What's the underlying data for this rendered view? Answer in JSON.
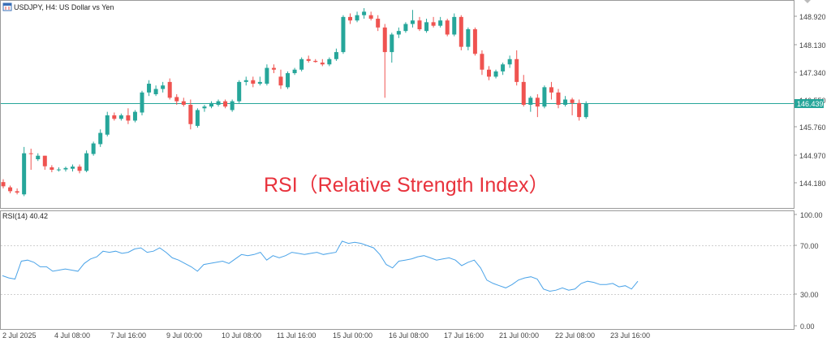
{
  "chart_data": [
    {
      "type": "candlestick",
      "title": "USDJPY, H4:  US Dollar vs Yen",
      "overlay_text": "RSI（Relative Strength Index）",
      "y_ticks": [
        "148.920",
        "148.130",
        "147.340",
        "146.550",
        "145.760",
        "144.970",
        "144.180"
      ],
      "current_price": "146.439",
      "colors": {
        "up": "#26a69a",
        "down": "#ef5350",
        "price_line": "#26a69a",
        "tag_bg": "#26a69a"
      },
      "candles": [
        {
          "o": 144.2,
          "h": 144.28,
          "l": 144.02,
          "c": 144.08
        },
        {
          "o": 144.05,
          "h": 144.1,
          "l": 143.88,
          "c": 143.94
        },
        {
          "o": 143.94,
          "h": 144.02,
          "l": 143.85,
          "c": 143.9
        },
        {
          "o": 143.85,
          "h": 145.2,
          "l": 143.8,
          "c": 145.02
        },
        {
          "o": 145.02,
          "h": 145.15,
          "l": 144.55,
          "c": 145.0
        },
        {
          "o": 144.85,
          "h": 145.02,
          "l": 144.8,
          "c": 144.95
        },
        {
          "o": 144.95,
          "h": 144.95,
          "l": 144.55,
          "c": 144.65
        },
        {
          "o": 144.62,
          "h": 144.68,
          "l": 144.48,
          "c": 144.55
        },
        {
          "o": 144.55,
          "h": 144.62,
          "l": 144.5,
          "c": 144.56
        },
        {
          "o": 144.56,
          "h": 144.64,
          "l": 144.5,
          "c": 144.6
        },
        {
          "o": 144.58,
          "h": 144.7,
          "l": 144.5,
          "c": 144.64
        },
        {
          "o": 144.64,
          "h": 144.7,
          "l": 144.45,
          "c": 144.52
        },
        {
          "o": 144.52,
          "h": 145.1,
          "l": 144.48,
          "c": 145.02
        },
        {
          "o": 145.0,
          "h": 145.35,
          "l": 144.95,
          "c": 145.3
        },
        {
          "o": 145.28,
          "h": 145.7,
          "l": 145.2,
          "c": 145.6
        },
        {
          "o": 145.55,
          "h": 146.2,
          "l": 145.5,
          "c": 146.1
        },
        {
          "o": 146.1,
          "h": 146.18,
          "l": 145.95,
          "c": 146.0
        },
        {
          "o": 146.0,
          "h": 146.15,
          "l": 145.95,
          "c": 146.1
        },
        {
          "o": 146.1,
          "h": 146.3,
          "l": 145.85,
          "c": 145.95
        },
        {
          "o": 145.95,
          "h": 146.25,
          "l": 145.9,
          "c": 146.2
        },
        {
          "o": 146.18,
          "h": 146.8,
          "l": 146.1,
          "c": 146.75
        },
        {
          "o": 146.75,
          "h": 147.1,
          "l": 146.65,
          "c": 147.0
        },
        {
          "o": 146.7,
          "h": 146.95,
          "l": 146.65,
          "c": 146.85
        },
        {
          "o": 146.85,
          "h": 147.05,
          "l": 146.75,
          "c": 146.95
        },
        {
          "o": 147.05,
          "h": 147.15,
          "l": 146.55,
          "c": 146.6
        },
        {
          "o": 146.62,
          "h": 146.7,
          "l": 146.4,
          "c": 146.5
        },
        {
          "o": 146.5,
          "h": 146.6,
          "l": 146.35,
          "c": 146.4
        },
        {
          "o": 146.4,
          "h": 146.55,
          "l": 145.7,
          "c": 145.85
        },
        {
          "o": 145.8,
          "h": 146.3,
          "l": 145.75,
          "c": 146.25
        },
        {
          "o": 146.3,
          "h": 146.4,
          "l": 146.2,
          "c": 146.35
        },
        {
          "o": 146.35,
          "h": 146.5,
          "l": 146.3,
          "c": 146.45
        },
        {
          "o": 146.4,
          "h": 146.55,
          "l": 146.35,
          "c": 146.5
        },
        {
          "o": 146.5,
          "h": 146.55,
          "l": 146.3,
          "c": 146.35
        },
        {
          "o": 146.25,
          "h": 146.55,
          "l": 146.2,
          "c": 146.5
        },
        {
          "o": 146.5,
          "h": 147.1,
          "l": 146.45,
          "c": 147.05
        },
        {
          "o": 147.05,
          "h": 147.2,
          "l": 146.95,
          "c": 147.1
        },
        {
          "o": 147.1,
          "h": 147.2,
          "l": 146.9,
          "c": 147.0
        },
        {
          "o": 147.0,
          "h": 147.2,
          "l": 146.95,
          "c": 147.05
        },
        {
          "o": 147.0,
          "h": 147.55,
          "l": 146.95,
          "c": 147.45
        },
        {
          "o": 147.45,
          "h": 147.55,
          "l": 147.3,
          "c": 147.4
        },
        {
          "o": 147.2,
          "h": 147.4,
          "l": 146.85,
          "c": 146.95
        },
        {
          "o": 146.9,
          "h": 147.35,
          "l": 146.85,
          "c": 147.3
        },
        {
          "o": 147.3,
          "h": 147.45,
          "l": 147.25,
          "c": 147.4
        },
        {
          "o": 147.4,
          "h": 147.75,
          "l": 147.35,
          "c": 147.7
        },
        {
          "o": 147.7,
          "h": 147.8,
          "l": 147.6,
          "c": 147.65
        },
        {
          "o": 147.65,
          "h": 147.7,
          "l": 147.6,
          "c": 147.62
        },
        {
          "o": 147.6,
          "h": 147.7,
          "l": 147.5,
          "c": 147.55
        },
        {
          "o": 147.55,
          "h": 147.75,
          "l": 147.5,
          "c": 147.7
        },
        {
          "o": 147.7,
          "h": 148.0,
          "l": 147.65,
          "c": 147.9
        },
        {
          "o": 147.9,
          "h": 148.95,
          "l": 147.85,
          "c": 148.9
        },
        {
          "o": 148.9,
          "h": 149.0,
          "l": 148.7,
          "c": 148.8
        },
        {
          "o": 148.8,
          "h": 149.05,
          "l": 148.75,
          "c": 148.95
        },
        {
          "o": 148.95,
          "h": 149.15,
          "l": 148.85,
          "c": 149.05
        },
        {
          "o": 148.95,
          "h": 149.05,
          "l": 148.8,
          "c": 148.85
        },
        {
          "o": 148.85,
          "h": 148.95,
          "l": 148.5,
          "c": 148.6
        },
        {
          "o": 148.6,
          "h": 148.7,
          "l": 146.6,
          "c": 147.9
        },
        {
          "o": 147.9,
          "h": 148.45,
          "l": 147.6,
          "c": 148.4
        },
        {
          "o": 148.4,
          "h": 148.6,
          "l": 148.3,
          "c": 148.5
        },
        {
          "o": 148.5,
          "h": 148.75,
          "l": 148.45,
          "c": 148.7
        },
        {
          "o": 148.7,
          "h": 149.1,
          "l": 148.6,
          "c": 148.8
        },
        {
          "o": 148.8,
          "h": 148.9,
          "l": 148.5,
          "c": 148.55
        },
        {
          "o": 148.5,
          "h": 148.85,
          "l": 148.45,
          "c": 148.75
        },
        {
          "o": 148.75,
          "h": 148.9,
          "l": 148.6,
          "c": 148.65
        },
        {
          "o": 148.65,
          "h": 148.9,
          "l": 148.6,
          "c": 148.8
        },
        {
          "o": 148.8,
          "h": 148.85,
          "l": 148.35,
          "c": 148.4
        },
        {
          "o": 148.4,
          "h": 149.0,
          "l": 148.35,
          "c": 148.9
        },
        {
          "o": 148.9,
          "h": 148.95,
          "l": 147.95,
          "c": 148.05
        },
        {
          "o": 148.05,
          "h": 148.6,
          "l": 147.95,
          "c": 148.55
        },
        {
          "o": 148.55,
          "h": 148.6,
          "l": 147.8,
          "c": 147.85
        },
        {
          "o": 147.85,
          "h": 147.95,
          "l": 147.25,
          "c": 147.4
        },
        {
          "o": 147.4,
          "h": 147.5,
          "l": 147.1,
          "c": 147.2
        },
        {
          "o": 147.2,
          "h": 147.4,
          "l": 147.15,
          "c": 147.35
        },
        {
          "o": 147.35,
          "h": 147.6,
          "l": 147.25,
          "c": 147.55
        },
        {
          "o": 147.55,
          "h": 147.8,
          "l": 147.45,
          "c": 147.7
        },
        {
          "o": 147.7,
          "h": 147.95,
          "l": 146.95,
          "c": 147.05
        },
        {
          "o": 147.05,
          "h": 147.25,
          "l": 146.35,
          "c": 146.4
        },
        {
          "o": 146.4,
          "h": 146.65,
          "l": 146.2,
          "c": 146.6
        },
        {
          "o": 146.6,
          "h": 146.7,
          "l": 146.05,
          "c": 146.35
        },
        {
          "o": 146.35,
          "h": 146.95,
          "l": 146.3,
          "c": 146.9
        },
        {
          "o": 146.9,
          "h": 147.05,
          "l": 146.55,
          "c": 146.75
        },
        {
          "o": 146.75,
          "h": 146.85,
          "l": 146.3,
          "c": 146.4
        },
        {
          "o": 146.4,
          "h": 146.65,
          "l": 146.35,
          "c": 146.55
        },
        {
          "o": 146.55,
          "h": 146.6,
          "l": 146.1,
          "c": 146.45
        },
        {
          "o": 146.45,
          "h": 146.55,
          "l": 145.95,
          "c": 146.05
        },
        {
          "o": 146.05,
          "h": 146.5,
          "l": 146.0,
          "c": 146.44
        }
      ]
    },
    {
      "type": "line",
      "title": "RSI(14) 40.42",
      "y_ticks": [
        "100.00",
        "70.00",
        "30.00",
        "0.00"
      ],
      "ylim": [
        0,
        100
      ],
      "levels": [
        70,
        30
      ],
      "color": "#4aa3e8",
      "x_labels": [
        "2 Jul 2025",
        "4 Jul 08:00",
        "7 Jul 16:00",
        "9 Jul 00:00",
        "10 Jul 08:00",
        "11 Jul 16:00",
        "15 Jul 00:00",
        "16 Jul 08:00",
        "17 Jul 16:00",
        "21 Jul 00:00",
        "22 Jul 08:00",
        "23 Jul 16:00"
      ],
      "values": [
        45,
        43,
        42,
        58,
        59,
        57,
        53,
        53,
        49,
        50,
        51,
        50,
        49,
        56,
        60,
        62,
        67,
        66,
        67,
        65,
        66,
        69,
        70,
        66,
        67,
        70,
        66,
        61,
        59,
        56,
        53,
        49,
        55,
        56,
        57,
        58,
        56,
        60,
        64,
        63,
        64,
        66,
        59,
        63,
        61,
        63,
        66,
        65,
        64,
        65,
        66,
        64,
        65,
        66,
        76,
        74,
        75,
        74,
        72,
        70,
        64,
        55,
        52,
        58,
        59,
        60,
        62,
        63,
        61,
        59,
        60,
        61,
        59,
        54,
        57,
        59,
        52,
        41,
        38,
        36,
        34,
        37,
        41,
        43,
        44,
        42,
        33,
        31,
        32,
        34,
        32,
        33,
        38,
        40,
        39,
        37,
        37,
        38,
        35,
        36,
        33,
        40
      ]
    }
  ]
}
